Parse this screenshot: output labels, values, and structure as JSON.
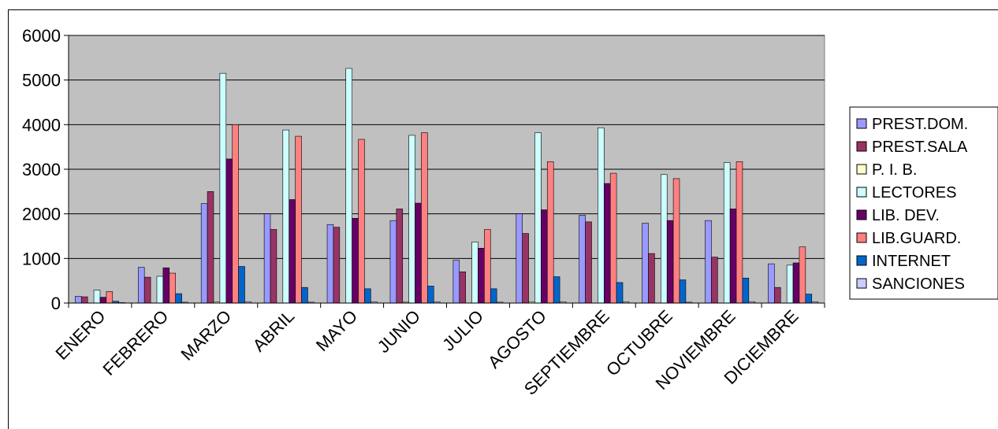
{
  "chart_data": {
    "type": "bar",
    "title": "",
    "xlabel": "",
    "ylabel": "",
    "ylim": [
      0,
      6000
    ],
    "yticks": [
      0,
      1000,
      2000,
      3000,
      4000,
      5000,
      6000
    ],
    "grid": true,
    "legend_position": "right",
    "categories": [
      "ENERO",
      "FEBRERO",
      "MARZO",
      "ABRIL",
      "MAYO",
      "JUNIO",
      "JULIO",
      "AGOSTO",
      "SEPTIEMBRE",
      "OCTUBRE",
      "NOVIEMBRE",
      "DICIEMBRE"
    ],
    "series": [
      {
        "name": "PREST.DOM.",
        "color": "#9999ff",
        "values": [
          150,
          800,
          2230,
          2000,
          1760,
          1850,
          960,
          2000,
          1970,
          1790,
          1850,
          880
        ]
      },
      {
        "name": "PREST.SALA",
        "color": "#993366",
        "values": [
          140,
          580,
          2500,
          1650,
          1700,
          2110,
          700,
          1560,
          1820,
          1110,
          1030,
          350
        ]
      },
      {
        "name": "P. I. B.",
        "color": "#ffffcc",
        "values": [
          0,
          0,
          30,
          0,
          0,
          20,
          0,
          30,
          0,
          0,
          0,
          0
        ]
      },
      {
        "name": "LECTORES",
        "color": "#ccffff",
        "values": [
          290,
          600,
          5150,
          3880,
          5260,
          3760,
          1370,
          3820,
          3930,
          2880,
          3150,
          850
        ]
      },
      {
        "name": "LIB. DEV.",
        "color": "#660066",
        "values": [
          130,
          790,
          3230,
          2320,
          1900,
          2240,
          1230,
          2090,
          2680,
          1850,
          2110,
          900
        ]
      },
      {
        "name": "LIB.GUARD.",
        "color": "#ff8080",
        "values": [
          260,
          670,
          4000,
          3740,
          3670,
          3820,
          1650,
          3170,
          2910,
          2790,
          3170,
          1260
        ]
      },
      {
        "name": "INTERNET",
        "color": "#0066cc",
        "values": [
          40,
          210,
          820,
          350,
          320,
          380,
          320,
          590,
          460,
          520,
          560,
          200
        ]
      },
      {
        "name": "SANCIONES",
        "color": "#ccccff",
        "values": [
          10,
          20,
          30,
          20,
          30,
          30,
          20,
          30,
          30,
          20,
          30,
          30
        ]
      }
    ]
  }
}
